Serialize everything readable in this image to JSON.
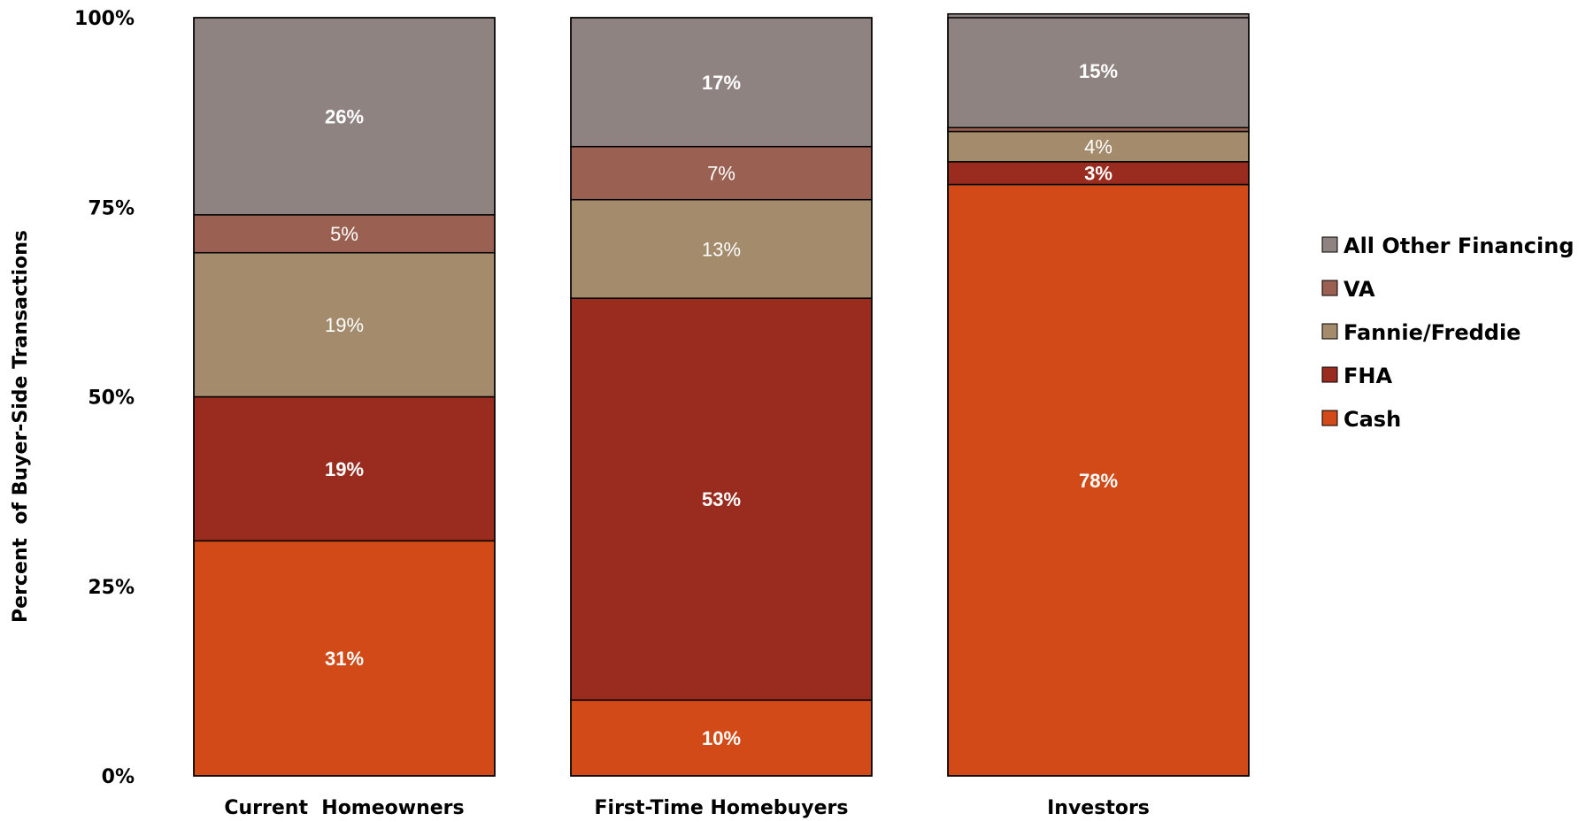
{
  "chart_data": {
    "type": "bar",
    "stacked": true,
    "categories": [
      "Current  Homeowners",
      "First-Time Homebuyers",
      "Investors"
    ],
    "series": [
      {
        "name": "Cash",
        "color": "#d14a18",
        "values": [
          31,
          10,
          78
        ],
        "labels": [
          "31%",
          "10%",
          "78%"
        ],
        "label_bold": true
      },
      {
        "name": "FHA",
        "color": "#9a2c1f",
        "values": [
          19,
          53,
          3
        ],
        "labels": [
          "19%",
          "53%",
          "3%"
        ],
        "label_bold": true
      },
      {
        "name": "Fannie/Freddie",
        "color": "#a38b6b",
        "values": [
          19,
          13,
          4
        ],
        "labels": [
          "19%",
          "13%",
          "4%"
        ],
        "label_bold": false
      },
      {
        "name": "VA",
        "color": "#9a6152",
        "values": [
          5,
          7,
          0.5
        ],
        "labels": [
          "5%",
          "7%",
          ""
        ],
        "label_bold": false
      },
      {
        "name": "All Other Financing",
        "color": "#8f8382",
        "values": [
          26,
          17,
          15
        ],
        "labels": [
          "26%",
          "17%",
          "15%"
        ],
        "label_bold": true
      }
    ],
    "ylabel": "Percent  of Buyer-Side Transactions",
    "xlabel": "",
    "ylim": [
      0,
      100
    ],
    "yticks": [
      0,
      25,
      50,
      75,
      100
    ],
    "ytick_labels": [
      "0%",
      "25%",
      "50%",
      "75%",
      "100%"
    ],
    "legend": {
      "position": "right",
      "order": [
        "All Other Financing",
        "VA",
        "Fannie/Freddie",
        "FHA",
        "Cash"
      ]
    },
    "grid": false
  }
}
